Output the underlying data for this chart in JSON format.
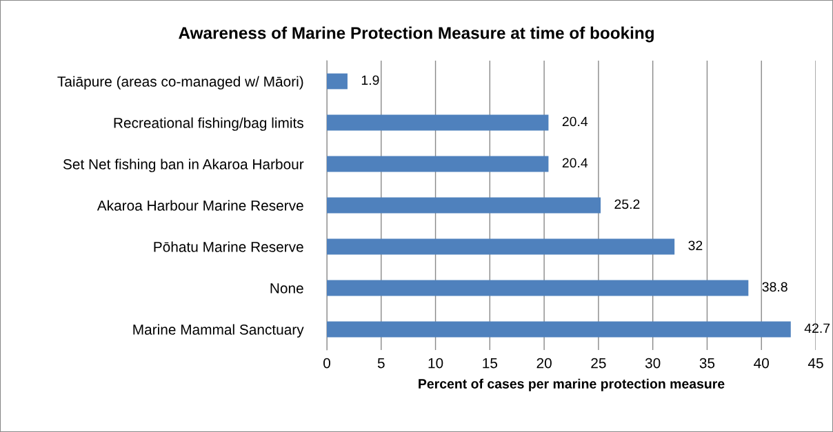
{
  "chart_data": {
    "type": "bar",
    "orientation": "horizontal",
    "title": "Awareness of Marine Protection Measure at time of booking",
    "xlabel": "Percent of cases per marine protection measure",
    "categories": [
      "Taiāpure (areas co-managed w/ Māori)",
      "Recreational fishing/bag limits",
      "Set Net fishing ban in Akaroa Harbour",
      "Akaroa Harbour Marine Reserve",
      "Pōhatu Marine Reserve",
      "None",
      "Marine Mammal Sanctuary"
    ],
    "values": [
      1.9,
      20.4,
      20.4,
      25.2,
      32,
      38.8,
      42.7
    ],
    "color": "#4f81bd",
    "xlim": [
      0,
      45
    ],
    "xticks": [
      0,
      5,
      10,
      15,
      20,
      25,
      30,
      35,
      40,
      45
    ],
    "grid": "x",
    "data_labels": true
  }
}
